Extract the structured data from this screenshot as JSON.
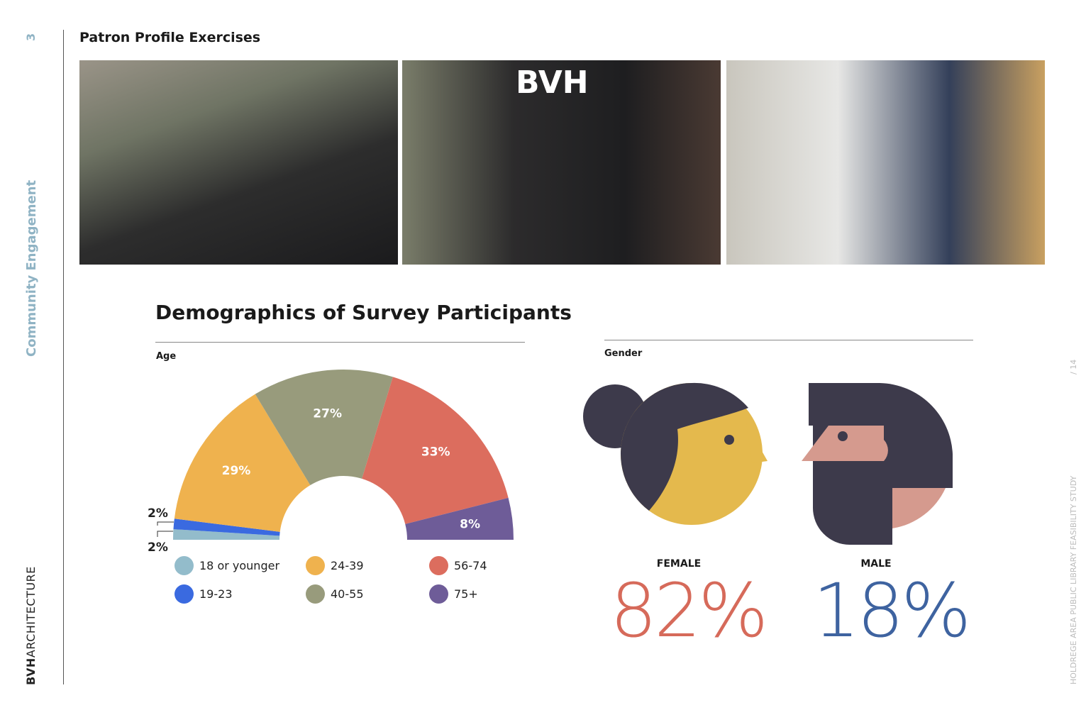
{
  "sidebar": {
    "page_number": "3",
    "section": "Community Engagement",
    "brand_bold": "BVH",
    "brand_rest": "ARCHITECTURE"
  },
  "right_margin": {
    "doc_title": "HOLDREGE AREA PUBLIC LIBRARY FEASIBILITY STUDY",
    "page_of": "/ 14"
  },
  "header": {
    "title": "Patron Profile Exercises"
  },
  "photos": [
    {
      "alt": "Children at jar activity table"
    },
    {
      "alt": "Participants at BVH Architecture booth"
    },
    {
      "alt": "Girls placing stickers on Design Your Own Library board"
    }
  ],
  "demographics": {
    "heading": "Demographics of Survey Participants",
    "age_label": "Age",
    "gender_label": "Gender"
  },
  "chart_data": {
    "type": "pie",
    "subtype": "half-donut",
    "title": "Age",
    "categories": [
      "18 or younger",
      "19-23",
      "24-39",
      "40-55",
      "56-74",
      "75+"
    ],
    "values": [
      2,
      2,
      29,
      27,
      33,
      8
    ],
    "labels": [
      "2%",
      "2%",
      "29%",
      "27%",
      "33%",
      "8%"
    ],
    "colors": [
      "#93bccb",
      "#3a6ae0",
      "#efb24e",
      "#989b7c",
      "#dc6d5e",
      "#6e5c98"
    ],
    "legend": "bottom"
  },
  "gender": {
    "female": {
      "label": "FEMALE",
      "value": "82%",
      "color": "#d66a5a"
    },
    "male": {
      "label": "MALE",
      "value": "18%",
      "color": "#3e63a0"
    }
  }
}
